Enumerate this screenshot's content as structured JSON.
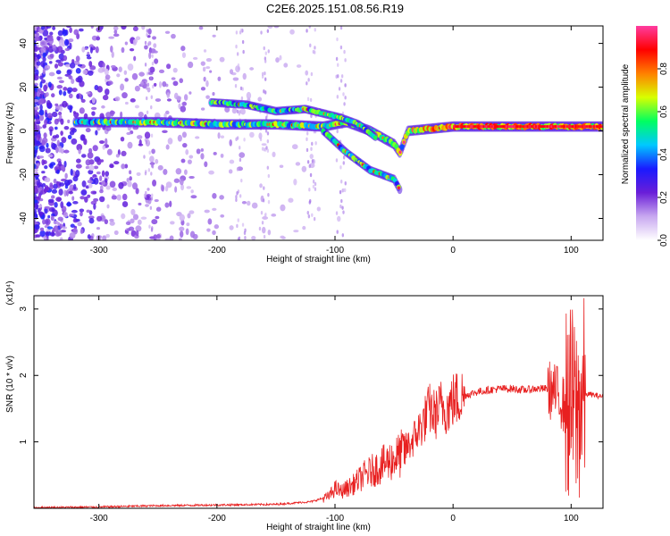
{
  "figure_title": "C2E6.2025.151.08.56.R19",
  "chart_data": [
    {
      "type": "heatmap",
      "xlabel": "Height of straight line (km)",
      "ylabel": "Frequency (Hz)",
      "xlim": [
        -355,
        127
      ],
      "ylim": [
        -50,
        48
      ],
      "xticks": [
        "-300",
        "-200",
        "-100",
        "0",
        "100"
      ],
      "xtick_values": [
        -300,
        -200,
        -100,
        0,
        100
      ],
      "yticks": [
        "-40",
        "-20",
        "0",
        "20",
        "40"
      ],
      "ytick_values": [
        -40,
        -20,
        0,
        20,
        40
      ],
      "colorbar": {
        "label": "Normalized spectral amplitude",
        "range": [
          0,
          1
        ],
        "ticks": [
          "0.0",
          "0.2",
          "0.4",
          "0.6",
          "0.8"
        ],
        "tick_values": [
          0.0,
          0.2,
          0.4,
          0.6,
          0.8
        ],
        "colormap": [
          "#ffffff",
          "#c8a8f0",
          "#6a1ed8",
          "#1a1aff",
          "#00c8ff",
          "#00ff60",
          "#d8ff00",
          "#ff8000",
          "#ff0000",
          "#ff3ca0"
        ]
      },
      "features": [
        {
          "name": "main_tone",
          "points": [
            [
              -320,
              4
            ],
            [
              -250,
              4
            ],
            [
              -200,
              3
            ],
            [
              -150,
              3
            ],
            [
              -110,
              2
            ],
            [
              -90,
              4
            ],
            [
              -70,
              0
            ],
            [
              -50,
              -6
            ],
            [
              -45,
              -10
            ],
            [
              -38,
              0
            ],
            [
              0,
              2
            ],
            [
              100,
              2
            ],
            [
              127,
              2
            ]
          ]
        },
        {
          "name": "upper_branch",
          "points": [
            [
              -205,
              13
            ],
            [
              -175,
              12
            ],
            [
              -150,
              9
            ],
            [
              -125,
              10
            ],
            [
              -110,
              8
            ],
            [
              -95,
              6
            ],
            [
              -80,
              3
            ],
            [
              -65,
              -3
            ]
          ]
        },
        {
          "name": "lower_branch",
          "points": [
            [
              -110,
              0
            ],
            [
              -100,
              -5
            ],
            [
              -90,
              -10
            ],
            [
              -80,
              -14
            ],
            [
              -70,
              -18
            ],
            [
              -60,
              -20
            ],
            [
              -50,
              -22
            ],
            [
              -45,
              -27
            ]
          ]
        }
      ]
    },
    {
      "type": "line",
      "xlabel": "Height of straight line (km)",
      "ylabel": "SNR (10 * v/v)",
      "yscale_label": "(x10⁴)",
      "xlim": [
        -355,
        127
      ],
      "ylim": [
        0,
        3.2
      ],
      "xticks": [
        "-300",
        "-200",
        "-100",
        "0",
        "100"
      ],
      "xtick_values": [
        -300,
        -200,
        -100,
        0,
        100
      ],
      "yticks": [
        "1",
        "2",
        "3"
      ],
      "ytick_values": [
        1,
        2,
        3
      ],
      "color": "#e82020",
      "series": [
        {
          "x": [
            -355,
            -300,
            -250,
            -200,
            -150,
            -120,
            -105,
            -100,
            -95,
            -85,
            -75,
            -65,
            -55,
            -45,
            -35,
            -25,
            -20,
            -15,
            -10,
            -5,
            0,
            10,
            20,
            30,
            40,
            50,
            60,
            70,
            80,
            85,
            90,
            95,
            100,
            105,
            110,
            115,
            120,
            127
          ],
          "y": [
            0.01,
            0.02,
            0.04,
            0.05,
            0.06,
            0.1,
            0.18,
            0.3,
            0.25,
            0.35,
            0.5,
            0.6,
            0.7,
            0.8,
            1.0,
            1.3,
            1.5,
            1.4,
            1.55,
            1.5,
            1.62,
            1.7,
            1.75,
            1.78,
            1.8,
            1.8,
            1.78,
            1.8,
            1.8,
            1.75,
            1.7,
            1.5,
            1.6,
            1.4,
            1.7,
            1.72,
            1.7,
            1.68
          ]
        }
      ]
    }
  ]
}
